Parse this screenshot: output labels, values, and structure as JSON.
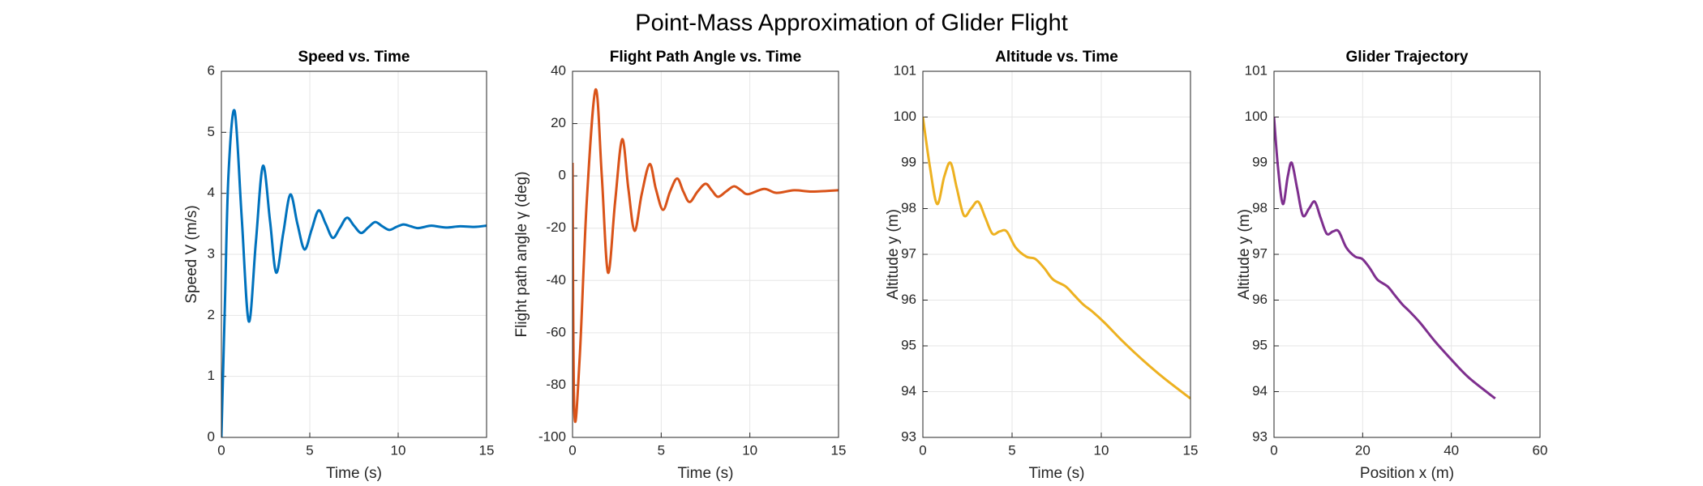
{
  "title": "Point-Mass Approximation of Glider Flight",
  "chart_data": [
    {
      "type": "line",
      "title": "Speed vs. Time",
      "xlabel": "Time (s)",
      "ylabel": "Speed V (m/s)",
      "x": [
        0,
        0.2,
        0.4,
        0.75,
        1.15,
        1.55,
        1.95,
        2.35,
        2.75,
        3.1,
        3.5,
        3.9,
        4.3,
        4.7,
        5.1,
        5.5,
        5.9,
        6.3,
        6.7,
        7.1,
        7.5,
        7.9,
        8.3,
        8.7,
        9.1,
        9.5,
        9.9,
        10.3,
        10.7,
        11.1,
        11.5,
        11.9,
        12.7,
        13.5,
        14.3,
        15
      ],
      "values": [
        0,
        2.2,
        4.3,
        5.35,
        3.6,
        1.9,
        3.2,
        4.45,
        3.55,
        2.7,
        3.35,
        3.98,
        3.5,
        3.08,
        3.4,
        3.72,
        3.5,
        3.27,
        3.43,
        3.6,
        3.47,
        3.35,
        3.44,
        3.53,
        3.46,
        3.4,
        3.45,
        3.49,
        3.46,
        3.43,
        3.45,
        3.47,
        3.44,
        3.46,
        3.45,
        3.47
      ],
      "color": "#0072BD",
      "xlim": [
        0,
        15
      ],
      "xticks": [
        0,
        5,
        10,
        15
      ],
      "ylim": [
        0,
        6
      ],
      "yticks": [
        0,
        1,
        2,
        3,
        4,
        5,
        6
      ],
      "grid": true
    },
    {
      "type": "line",
      "title": "Flight Path Angle vs. Time",
      "xlabel": "Time (s)",
      "ylabel": "Flight path angle γ (deg)",
      "x": [
        0,
        0.1,
        0.4,
        0.8,
        1.3,
        1.65,
        2.0,
        2.4,
        2.8,
        3.15,
        3.5,
        3.9,
        4.35,
        4.7,
        5.1,
        5.5,
        5.9,
        6.25,
        6.6,
        7.05,
        7.5,
        7.85,
        8.2,
        8.65,
        9.1,
        9.5,
        9.9,
        10.8,
        11.5,
        12.5,
        13.5,
        15
      ],
      "values": [
        5,
        -90,
        -70,
        -10,
        33,
        0,
        -37,
        -10,
        14,
        -5,
        -21,
        -7,
        4.5,
        -5,
        -13,
        -6,
        -1,
        -6,
        -10,
        -6,
        -3,
        -5.5,
        -8,
        -6,
        -4,
        -5.5,
        -7,
        -5,
        -6.5,
        -5.5,
        -6,
        -5.5
      ],
      "color": "#D95319",
      "xlim": [
        0,
        15
      ],
      "xticks": [
        0,
        5,
        10,
        15
      ],
      "ylim": [
        -100,
        40
      ],
      "yticks": [
        -100,
        -80,
        -60,
        -40,
        -20,
        0,
        20,
        40
      ],
      "grid": true
    },
    {
      "type": "line",
      "title": "Altitude vs. Time",
      "xlabel": "Time (s)",
      "ylabel": "Altitude y (m)",
      "x": [
        0,
        0.4,
        0.8,
        1.2,
        1.55,
        1.9,
        2.3,
        2.7,
        3.1,
        3.5,
        3.9,
        4.3,
        4.7,
        5.2,
        5.8,
        6.3,
        6.8,
        7.3,
        8.0,
        8.5,
        9.0,
        9.5,
        10.2,
        11.2,
        12.3,
        13.5,
        15
      ],
      "values": [
        100,
        98.9,
        98.1,
        98.7,
        99.0,
        98.45,
        97.85,
        98.0,
        98.15,
        97.8,
        97.45,
        97.5,
        97.5,
        97.15,
        96.95,
        96.9,
        96.7,
        96.45,
        96.3,
        96.1,
        95.9,
        95.75,
        95.5,
        95.1,
        94.7,
        94.3,
        93.85
      ],
      "color": "#EDB120",
      "xlim": [
        0,
        15
      ],
      "xticks": [
        0,
        5,
        10,
        15
      ],
      "ylim": [
        93,
        101
      ],
      "yticks": [
        93,
        94,
        95,
        96,
        97,
        98,
        99,
        100,
        101
      ],
      "grid": true
    },
    {
      "type": "line",
      "title": "Glider Trajectory",
      "xlabel": "Position x (m)",
      "ylabel": "Altitude y (m)",
      "x": [
        0,
        0.9,
        2.0,
        3.1,
        4.0,
        5.2,
        6.5,
        7.9,
        9.2,
        10.5,
        11.9,
        13.3,
        14.6,
        16.3,
        18.3,
        19.9,
        21.6,
        23.3,
        25.6,
        27.3,
        29.0,
        30.6,
        33.0,
        36.3,
        40.0,
        44.0,
        49.9
      ],
      "values": [
        100,
        98.9,
        98.1,
        98.7,
        99.0,
        98.45,
        97.85,
        98.0,
        98.15,
        97.8,
        97.45,
        97.5,
        97.5,
        97.15,
        96.95,
        96.9,
        96.7,
        96.45,
        96.3,
        96.1,
        95.9,
        95.75,
        95.5,
        95.1,
        94.7,
        94.3,
        93.85
      ],
      "color": "#7E2F8E",
      "xlim": [
        0,
        60
      ],
      "xticks": [
        0,
        20,
        40,
        60
      ],
      "ylim": [
        93,
        101
      ],
      "yticks": [
        93,
        94,
        95,
        96,
        97,
        98,
        99,
        100,
        101
      ],
      "grid": true
    }
  ]
}
